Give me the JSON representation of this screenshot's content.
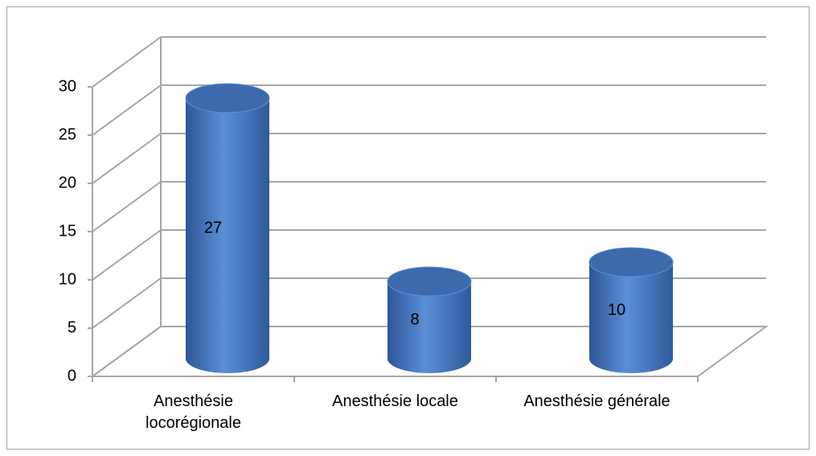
{
  "chart_data": {
    "type": "bar",
    "categories": [
      "Anesthésie locorégionale",
      "Anesthésie locale",
      "Anesthésie générale"
    ],
    "values": [
      27,
      8,
      10
    ],
    "color": "#4a7cc0",
    "ylim": [
      0,
      30
    ],
    "yticks": [
      0,
      5,
      10,
      15,
      20,
      25,
      30
    ],
    "grid": true
  }
}
